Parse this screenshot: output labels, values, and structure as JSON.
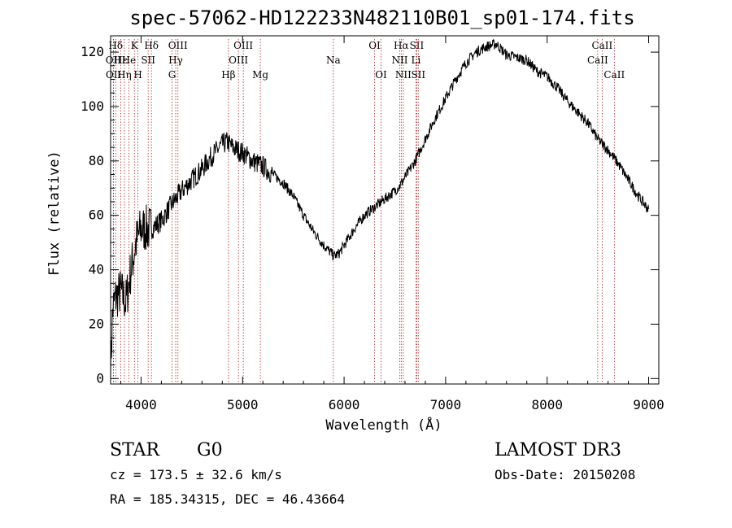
{
  "chart_data": {
    "type": "line",
    "title": "spec-57062-HD122233N482110B01_sp01-174.fits",
    "xlabel": "Wavelength (Å)",
    "ylabel": "Flux (relative)",
    "xlim": [
      3700,
      9100
    ],
    "ylim": [
      -2,
      126
    ],
    "xticks": [
      4000,
      5000,
      6000,
      7000,
      8000,
      9000
    ],
    "yticks": [
      0,
      20,
      40,
      60,
      80,
      100,
      120
    ],
    "series": [
      {
        "name": "flux",
        "x": [
          3700,
          3720,
          3750,
          3800,
          3850,
          3900,
          3950,
          4000,
          4050,
          4100,
          4200,
          4300,
          4400,
          4500,
          4600,
          4700,
          4800,
          4850,
          4900,
          5000,
          5100,
          5200,
          5300,
          5400,
          5500,
          5600,
          5700,
          5800,
          5900,
          5950,
          6000,
          6100,
          6200,
          6300,
          6400,
          6500,
          6550,
          6600,
          6700,
          6800,
          6900,
          7000,
          7100,
          7200,
          7300,
          7400,
          7500,
          7600,
          7700,
          7800,
          7900,
          8000,
          8100,
          8200,
          8300,
          8400,
          8500,
          8600,
          8700,
          8800,
          8900,
          9000
        ],
        "y": [
          2,
          25,
          30,
          32,
          28,
          40,
          50,
          55,
          55,
          55,
          58,
          64,
          69,
          73,
          77,
          82,
          86,
          87,
          85,
          83,
          80,
          78,
          75,
          72,
          67,
          60,
          54,
          49,
          45,
          46,
          49,
          55,
          60,
          63,
          66,
          69,
          71,
          74,
          80,
          88,
          96,
          103,
          110,
          116,
          120,
          122,
          123,
          119,
          118,
          117,
          113,
          111,
          107,
          102,
          98,
          94,
          88,
          84,
          79,
          73,
          67,
          62
        ]
      }
    ],
    "lines": [
      {
        "label": "Hδ",
        "wave": 3750,
        "row": 0
      },
      {
        "label": "OII",
        "wave": 3727,
        "row": 1
      },
      {
        "label": "OII",
        "wave": 3729,
        "row": 2
      },
      {
        "label": "Hε",
        "wave": 3800,
        "row": 1
      },
      {
        "label": "Hη",
        "wave": 3835,
        "row": 2
      },
      {
        "label": "K",
        "wave": 3934,
        "row": 0
      },
      {
        "label": "He",
        "wave": 3880,
        "row": 1
      },
      {
        "label": "H",
        "wave": 3969,
        "row": 2
      },
      {
        "label": "Hδ",
        "wave": 4102,
        "row": 0
      },
      {
        "label": "SII",
        "wave": 4070,
        "row": 1
      },
      {
        "label": "OIII",
        "wave": 4363,
        "row": 0
      },
      {
        "label": "Hγ",
        "wave": 4341,
        "row": 1
      },
      {
        "label": "G",
        "wave": 4305,
        "row": 2
      },
      {
        "label": "Hβ",
        "wave": 4861,
        "row": 2
      },
      {
        "label": "OIII",
        "wave": 5007,
        "row": 0
      },
      {
        "label": "OIII",
        "wave": 4959,
        "row": 1
      },
      {
        "label": "Mg",
        "wave": 5175,
        "row": 2
      },
      {
        "label": "Na",
        "wave": 5894,
        "row": 1
      },
      {
        "label": "OI",
        "wave": 6300,
        "row": 0
      },
      {
        "label": "OI",
        "wave": 6364,
        "row": 2
      },
      {
        "label": "Hα",
        "wave": 6563,
        "row": 0
      },
      {
        "label": "NII",
        "wave": 6548,
        "row": 1
      },
      {
        "label": "NII",
        "wave": 6583,
        "row": 2
      },
      {
        "label": "SII",
        "wave": 6716,
        "row": 0
      },
      {
        "label": "Li",
        "wave": 6708,
        "row": 1
      },
      {
        "label": "SII",
        "wave": 6731,
        "row": 2
      },
      {
        "label": "CaII",
        "wave": 8542,
        "row": 0
      },
      {
        "label": "CaII",
        "wave": 8498,
        "row": 1
      },
      {
        "label": "CaII",
        "wave": 8662,
        "row": 2
      }
    ],
    "line_color": "#b22222",
    "spectrum_color": "#000000"
  },
  "info": {
    "class_label": "STAR",
    "subclass": "G0",
    "survey": "LAMOST DR3",
    "cz": "cz = 173.5 ± 32.6 km/s",
    "obs_date": "Obs-Date: 20150208",
    "radec": "RA = 185.34315, DEC =  46.43664"
  }
}
